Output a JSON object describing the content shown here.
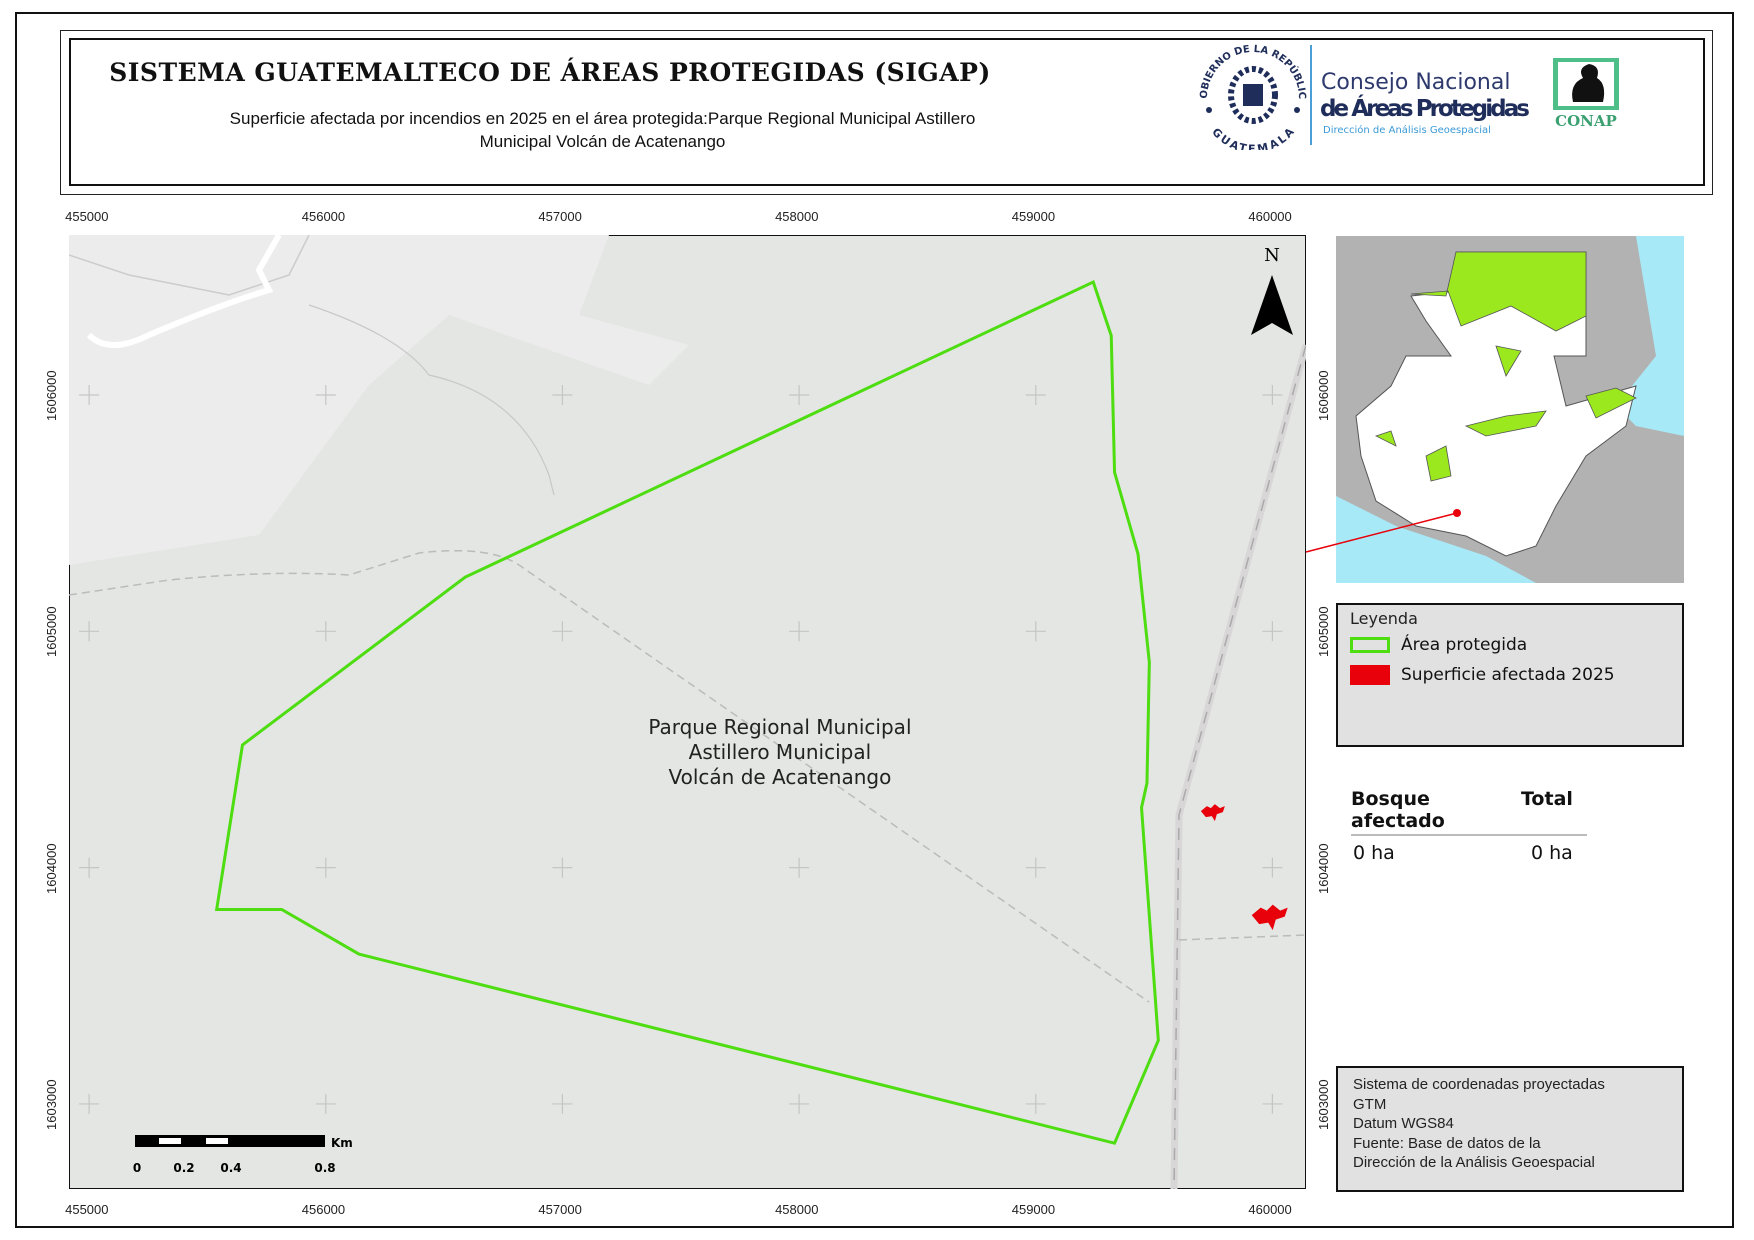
{
  "header": {
    "title": "SISTEMA GUATEMALTECO DE ÁREAS PROTEGIDAS  (SIGAP)",
    "subtitle_line1": "Superficie afectada por incendios en 2025 en el área protegida:Parque Regional Municipal Astillero",
    "subtitle_line2": "Municipal Volcán de Acatenango",
    "logos": {
      "gobierno_top": "GOBIERNO DE LA REPÚBLICA",
      "gobierno_bottom": "GUATEMALA",
      "conap_line1": "Consejo Nacional",
      "conap_line2": "de Áreas Protegidas",
      "conap_line3": "Dirección de Análisis Geoespacial",
      "conap_badge": "CONAP"
    }
  },
  "map": {
    "crs": "GTM",
    "extent": {
      "xmin": 454915,
      "xmax": 460142,
      "ymin": 1602640,
      "ymax": 1606677
    },
    "x_ticks": [
      "455000",
      "456000",
      "457000",
      "458000",
      "459000",
      "460000"
    ],
    "y_ticks": [
      "1603000",
      "1604000",
      "1605000",
      "1606000"
    ],
    "area_label": [
      "Parque Regional Municipal",
      "Astillero Municipal",
      "Volcán de Acatenango"
    ],
    "area_label_position": [
      457919,
      1604490
    ],
    "protected_area_polygon": [
      [
        459243,
        1606478
      ],
      [
        459319,
        1606251
      ],
      [
        459333,
        1605673
      ],
      [
        459432,
        1605328
      ],
      [
        459480,
        1604869
      ],
      [
        459470,
        1604358
      ],
      [
        459447,
        1604254
      ],
      [
        459518,
        1603269
      ],
      [
        459333,
        1602834
      ],
      [
        456140,
        1603634
      ],
      [
        455814,
        1603823
      ],
      [
        455539,
        1603823
      ],
      [
        455648,
        1604519
      ],
      [
        456589,
        1605229
      ]
    ],
    "burn_patches": [
      [
        459740,
        1604239
      ],
      [
        459976,
        1603799
      ]
    ],
    "north_label": "N",
    "scalebar": {
      "unit": "Km",
      "labels": [
        "0",
        "0.2",
        "0.4",
        "0.8"
      ]
    },
    "colors": {
      "background": "#e3e6e2",
      "light_terrain": "#eeeeee",
      "boundary": "#4ddd11",
      "burn": "#e8000b",
      "road": "#c9c9c9"
    }
  },
  "legend": {
    "title": "Leyenda",
    "items": [
      {
        "label": "Área protegida",
        "color": "#4ddd11"
      },
      {
        "label": "Superficie afectada 2025",
        "color": "#e8000b"
      }
    ]
  },
  "stats": {
    "headers": [
      "Bosque afectado",
      "Total"
    ],
    "values": [
      "0 ha",
      "0 ha"
    ]
  },
  "info": [
    "Sistema de coordenadas proyectadas",
    "GTM",
    "Datum WGS84",
    "Fuente: Base de datos de la",
    "Dirección de la Análisis Geoespacial"
  ]
}
